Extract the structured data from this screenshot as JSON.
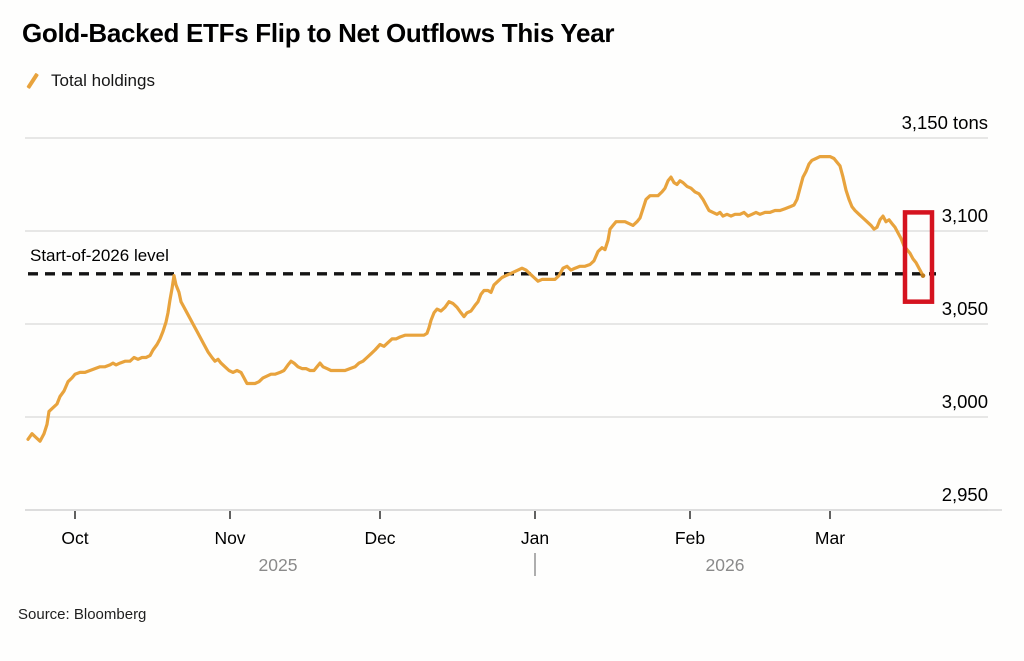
{
  "source": {
    "text": "Source: Bloomberg"
  },
  "chart_data": {
    "type": "line",
    "title": "Gold-Backed ETFs Flip to Net Outflows This Year",
    "unit": "tons",
    "legend_position": "top-left",
    "grid": "horizontal",
    "colors": {
      "series": "#E8A33D",
      "highlight": "#D5131F",
      "gridline": "#d9d9d9",
      "reference": "#141414",
      "year_label": "#8a8a8a"
    },
    "y_axis": {
      "side": "right",
      "min": 2950,
      "max": 3150,
      "ticks": [
        {
          "label": "3,150 tons",
          "value": 3150
        },
        {
          "label": "3,100",
          "value": 3100
        },
        {
          "label": "3,050",
          "value": 3050
        },
        {
          "label": "3,000",
          "value": 3000
        },
        {
          "label": "2,950",
          "value": 2950
        }
      ]
    },
    "x_axis": {
      "unit": "days-from-Oct-1-2025",
      "ticks": [
        {
          "label": "Oct",
          "day": 0
        },
        {
          "label": "Nov",
          "day": 31
        },
        {
          "label": "Dec",
          "day": 61
        },
        {
          "label": "Jan",
          "day": 92
        },
        {
          "label": "Feb",
          "day": 123
        },
        {
          "label": "Mar",
          "day": 151
        }
      ],
      "years": [
        {
          "label": "2025",
          "day": 40.6
        },
        {
          "label": "2026",
          "day": 130
        }
      ],
      "divider_day": 92
    },
    "reference_line": {
      "label": "Start-of-2026 level",
      "value": 3077,
      "style": "dashed"
    },
    "highlight_box": {
      "day_start": 166,
      "day_end": 171.4,
      "value_top": 3110,
      "value_bottom": 3062
    },
    "series": [
      {
        "name": "Total holdings",
        "color": "#E8A33D",
        "points": [
          [
            -9.4,
            2988
          ],
          [
            -8.6,
            2991
          ],
          [
            -7.8,
            2989
          ],
          [
            -7,
            2987
          ],
          [
            -6.2,
            2991
          ],
          [
            -5.6,
            2996
          ],
          [
            -5.2,
            3003
          ],
          [
            -4.4,
            3005
          ],
          [
            -3.6,
            3007
          ],
          [
            -3,
            3011
          ],
          [
            -2.2,
            3014
          ],
          [
            -1.4,
            3019
          ],
          [
            -0.6,
            3021
          ],
          [
            0,
            3023
          ],
          [
            1,
            3024
          ],
          [
            2,
            3024
          ],
          [
            3,
            3025
          ],
          [
            4,
            3026
          ],
          [
            5,
            3027
          ],
          [
            6,
            3027
          ],
          [
            7,
            3028
          ],
          [
            7.6,
            3029
          ],
          [
            8.2,
            3028
          ],
          [
            9,
            3029
          ],
          [
            10,
            3030
          ],
          [
            11,
            3030
          ],
          [
            11.8,
            3032
          ],
          [
            12.6,
            3031
          ],
          [
            13.4,
            3032
          ],
          [
            14.2,
            3032
          ],
          [
            15,
            3033
          ],
          [
            15.6,
            3036
          ],
          [
            16.4,
            3039
          ],
          [
            17,
            3042
          ],
          [
            17.6,
            3046
          ],
          [
            18.2,
            3051
          ],
          [
            18.6,
            3056
          ],
          [
            19,
            3063
          ],
          [
            19.4,
            3069
          ],
          [
            19.8,
            3076
          ],
          [
            20.2,
            3071
          ],
          [
            20.8,
            3067
          ],
          [
            21.2,
            3062
          ],
          [
            21.8,
            3059
          ],
          [
            22.4,
            3056
          ],
          [
            23,
            3053
          ],
          [
            23.6,
            3050
          ],
          [
            24.4,
            3046
          ],
          [
            25,
            3043
          ],
          [
            25.8,
            3039
          ],
          [
            26.6,
            3035
          ],
          [
            27.4,
            3032
          ],
          [
            28,
            3030
          ],
          [
            28.6,
            3031
          ],
          [
            29.2,
            3029
          ],
          [
            30,
            3027
          ],
          [
            30.8,
            3025
          ],
          [
            31.6,
            3024
          ],
          [
            32.4,
            3025
          ],
          [
            33.2,
            3024
          ],
          [
            33.8,
            3021
          ],
          [
            34.4,
            3018
          ],
          [
            35.2,
            3018
          ],
          [
            36,
            3018
          ],
          [
            36.8,
            3019
          ],
          [
            37.6,
            3021
          ],
          [
            38.4,
            3022
          ],
          [
            39.2,
            3023
          ],
          [
            40,
            3023
          ],
          [
            41,
            3024
          ],
          [
            41.8,
            3025
          ],
          [
            42.6,
            3028
          ],
          [
            43.2,
            3030
          ],
          [
            43.8,
            3029
          ],
          [
            44.6,
            3027
          ],
          [
            45.4,
            3026
          ],
          [
            46.2,
            3026
          ],
          [
            47,
            3025
          ],
          [
            47.8,
            3025
          ],
          [
            48.4,
            3027
          ],
          [
            49,
            3029
          ],
          [
            49.6,
            3027
          ],
          [
            50.4,
            3026
          ],
          [
            51.2,
            3025
          ],
          [
            52,
            3025
          ],
          [
            53,
            3025
          ],
          [
            54,
            3025
          ],
          [
            55,
            3026
          ],
          [
            56,
            3027
          ],
          [
            56.8,
            3029
          ],
          [
            57.6,
            3030
          ],
          [
            58.4,
            3032
          ],
          [
            59.2,
            3034
          ],
          [
            60,
            3036
          ],
          [
            61,
            3039
          ],
          [
            61.8,
            3038
          ],
          [
            62.6,
            3040
          ],
          [
            63.4,
            3042
          ],
          [
            64.2,
            3042
          ],
          [
            65,
            3043
          ],
          [
            66,
            3044
          ],
          [
            67,
            3044
          ],
          [
            68,
            3044
          ],
          [
            69,
            3044
          ],
          [
            69.8,
            3044
          ],
          [
            70.4,
            3045
          ],
          [
            70.8,
            3048
          ],
          [
            71.2,
            3052
          ],
          [
            71.8,
            3056
          ],
          [
            72.4,
            3058
          ],
          [
            73.2,
            3057
          ],
          [
            74,
            3059
          ],
          [
            74.8,
            3062
          ],
          [
            75.6,
            3061
          ],
          [
            76.4,
            3059
          ],
          [
            77.2,
            3056
          ],
          [
            77.8,
            3054
          ],
          [
            78.4,
            3056
          ],
          [
            79.2,
            3057
          ],
          [
            80,
            3060
          ],
          [
            80.6,
            3062
          ],
          [
            81.2,
            3066
          ],
          [
            81.8,
            3068
          ],
          [
            82.6,
            3068
          ],
          [
            83.2,
            3067
          ],
          [
            83.8,
            3071
          ],
          [
            84.6,
            3073
          ],
          [
            85.4,
            3075
          ],
          [
            86.2,
            3076
          ],
          [
            87,
            3077
          ],
          [
            87.8,
            3078
          ],
          [
            88.6,
            3079
          ],
          [
            89.4,
            3080
          ],
          [
            90.2,
            3079
          ],
          [
            91,
            3077
          ],
          [
            91.8,
            3075
          ],
          [
            92.6,
            3073
          ],
          [
            93.4,
            3074
          ],
          [
            94.2,
            3074
          ],
          [
            95,
            3074
          ],
          [
            96,
            3074
          ],
          [
            96.8,
            3076
          ],
          [
            97.6,
            3080
          ],
          [
            98.4,
            3081
          ],
          [
            99.2,
            3079
          ],
          [
            100,
            3080
          ],
          [
            101,
            3081
          ],
          [
            102,
            3081
          ],
          [
            103,
            3082
          ],
          [
            103.8,
            3084
          ],
          [
            104.6,
            3089
          ],
          [
            105.4,
            3091
          ],
          [
            106,
            3090
          ],
          [
            106.6,
            3095
          ],
          [
            107,
            3101
          ],
          [
            107.6,
            3103
          ],
          [
            108.2,
            3105
          ],
          [
            109,
            3105
          ],
          [
            110,
            3105
          ],
          [
            110.8,
            3104
          ],
          [
            111.6,
            3103
          ],
          [
            112.4,
            3105
          ],
          [
            113,
            3107
          ],
          [
            113.6,
            3112
          ],
          [
            114.2,
            3117
          ],
          [
            115,
            3119
          ],
          [
            115.8,
            3119
          ],
          [
            116.6,
            3119
          ],
          [
            117.4,
            3121
          ],
          [
            118,
            3123
          ],
          [
            118.6,
            3127
          ],
          [
            119.2,
            3129
          ],
          [
            119.8,
            3126
          ],
          [
            120.4,
            3125
          ],
          [
            121,
            3127
          ],
          [
            121.6,
            3126
          ],
          [
            122.4,
            3124
          ],
          [
            123.2,
            3123
          ],
          [
            124,
            3121
          ],
          [
            124.8,
            3120
          ],
          [
            125.6,
            3117
          ],
          [
            126.2,
            3114
          ],
          [
            126.8,
            3111
          ],
          [
            127.6,
            3110
          ],
          [
            128.4,
            3109
          ],
          [
            129,
            3110
          ],
          [
            129.6,
            3108
          ],
          [
            130.4,
            3109
          ],
          [
            131.2,
            3108
          ],
          [
            132,
            3109
          ],
          [
            133,
            3109
          ],
          [
            133.8,
            3110
          ],
          [
            134.6,
            3108
          ],
          [
            135.4,
            3109
          ],
          [
            136.2,
            3110
          ],
          [
            137,
            3109
          ],
          [
            138,
            3110
          ],
          [
            139,
            3110
          ],
          [
            140,
            3111
          ],
          [
            141,
            3111
          ],
          [
            142,
            3112
          ],
          [
            143,
            3113
          ],
          [
            143.8,
            3114
          ],
          [
            144.4,
            3117
          ],
          [
            145,
            3123
          ],
          [
            145.6,
            3129
          ],
          [
            146.2,
            3132
          ],
          [
            146.8,
            3136
          ],
          [
            147.4,
            3138
          ],
          [
            148.2,
            3139
          ],
          [
            149,
            3140
          ],
          [
            150,
            3140
          ],
          [
            151,
            3140
          ],
          [
            151.8,
            3139
          ],
          [
            152.4,
            3137
          ],
          [
            153,
            3135
          ],
          [
            153.6,
            3129
          ],
          [
            154.2,
            3122
          ],
          [
            154.8,
            3117
          ],
          [
            155.4,
            3113
          ],
          [
            156,
            3111
          ],
          [
            156.8,
            3109
          ],
          [
            157.6,
            3107
          ],
          [
            158.4,
            3105
          ],
          [
            159.2,
            3103
          ],
          [
            159.8,
            3101
          ],
          [
            160.4,
            3102
          ],
          [
            161,
            3106
          ],
          [
            161.6,
            3108
          ],
          [
            162.2,
            3105
          ],
          [
            162.8,
            3106
          ],
          [
            163.4,
            3104
          ],
          [
            164,
            3102
          ],
          [
            164.6,
            3099
          ],
          [
            165.2,
            3096
          ],
          [
            165.8,
            3092
          ],
          [
            166.4,
            3090
          ],
          [
            167,
            3088
          ],
          [
            167.6,
            3085
          ],
          [
            168.2,
            3083
          ],
          [
            168.8,
            3080
          ],
          [
            169.2,
            3078
          ],
          [
            169.6,
            3076
          ]
        ]
      }
    ]
  }
}
